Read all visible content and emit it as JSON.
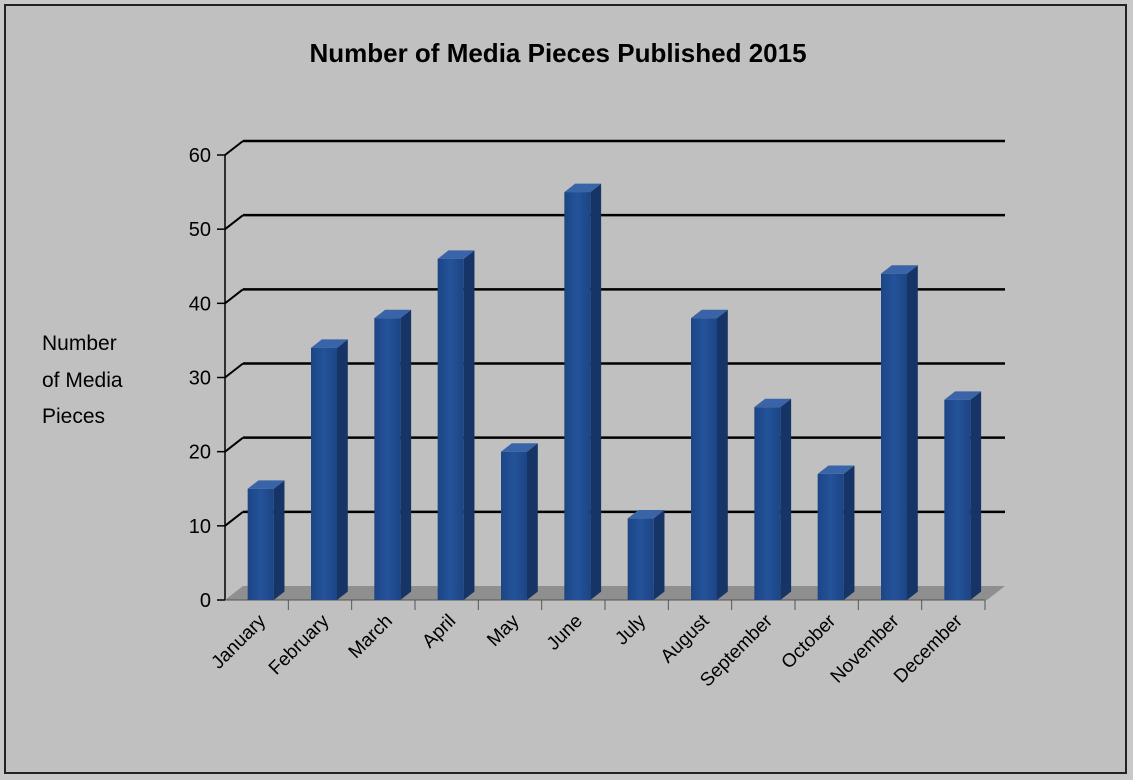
{
  "chart_data": {
    "type": "bar",
    "title": "Number of Media Pieces Published 2015",
    "ylabel_lines": [
      "Number",
      "of Media",
      "Pieces"
    ],
    "xlabel": "",
    "categories": [
      "January",
      "February",
      "March",
      "April",
      "May",
      "June",
      "July",
      "August",
      "September",
      "October",
      "November",
      "December"
    ],
    "values": [
      15,
      34,
      38,
      46,
      20,
      55,
      11,
      38,
      26,
      17,
      44,
      27
    ],
    "ylim": [
      0,
      60
    ],
    "yticks": [
      0,
      10,
      20,
      30,
      40,
      50,
      60
    ],
    "grid": true,
    "legend": "none",
    "style": "3d-column",
    "bar_color": "#1f4a8c",
    "bar_side_color": "#163566",
    "bar_top_color": "#3a64a8"
  }
}
